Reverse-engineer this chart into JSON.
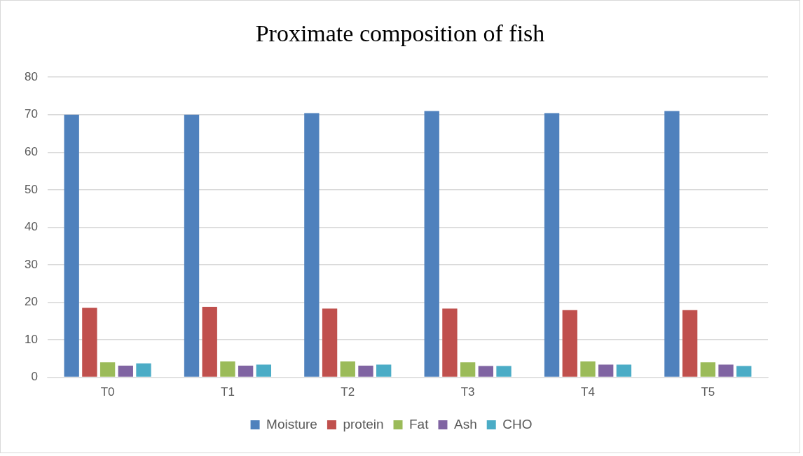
{
  "chart_data": {
    "type": "bar",
    "title": "Proximate composition of fish",
    "categories": [
      "T0",
      "T1",
      "T2",
      "T3",
      "T4",
      "T5"
    ],
    "series": [
      {
        "name": "Moisture",
        "color": "#4f81bd",
        "values": [
          70.0,
          70.0,
          70.4,
          71.0,
          70.4,
          71.0
        ]
      },
      {
        "name": "protein",
        "color": "#c0504d",
        "values": [
          18.5,
          18.8,
          18.3,
          18.3,
          17.9,
          17.9
        ]
      },
      {
        "name": "Fat",
        "color": "#9bbb59",
        "values": [
          4.0,
          4.2,
          4.2,
          4.0,
          4.2,
          4.0
        ]
      },
      {
        "name": "Ash",
        "color": "#8064a2",
        "values": [
          3.1,
          3.1,
          3.1,
          3.0,
          3.4,
          3.4
        ]
      },
      {
        "name": "CHO",
        "color": "#4bacc6",
        "values": [
          3.7,
          3.4,
          3.4,
          3.0,
          3.4,
          3.0
        ]
      }
    ],
    "ylim": [
      0,
      80
    ],
    "yticks": [
      0,
      10,
      20,
      30,
      40,
      50,
      60,
      70,
      80
    ],
    "grid": "y",
    "legend": "bottom"
  }
}
